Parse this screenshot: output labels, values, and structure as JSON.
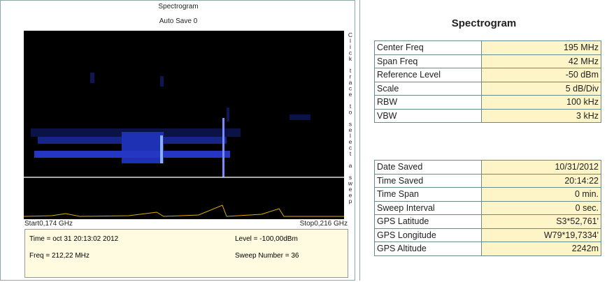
{
  "left_panel": {
    "title": "Spectrogram",
    "subtitle": "Auto Save 0",
    "hint": "Click trace to select a sweep",
    "start": "Start0,174 GHz",
    "stop": "Stop0,216 GHz",
    "info": {
      "time": "Time = oct 31 20:13:02 2012",
      "level": "Level = -100,00dBm",
      "freq": "Freq = 212,22 MHz",
      "sweep_number": "Sweep Number = 36"
    }
  },
  "right_panel": {
    "title": "Spectrogram",
    "settings": [
      [
        "Center Freq",
        "195 MHz"
      ],
      [
        "Span Freq",
        "42 MHz"
      ],
      [
        "Reference Level",
        "-50 dBm"
      ],
      [
        "Scale",
        "5 dB/Div"
      ],
      [
        "RBW",
        "100 kHz"
      ],
      [
        "VBW",
        "3 kHz"
      ]
    ],
    "saved_info": [
      [
        "Date Saved",
        "10/31/2012"
      ],
      [
        "Time Saved",
        "20:14:22"
      ],
      [
        "Time Span",
        "0 min."
      ],
      [
        "Sweep Interval",
        "0 sec."
      ],
      [
        "GPS Latitude",
        "S3*52,761'"
      ],
      [
        "GPS Longitude",
        "W79*19,7334'"
      ],
      [
        "GPS Altitude",
        "2242m"
      ]
    ]
  }
}
